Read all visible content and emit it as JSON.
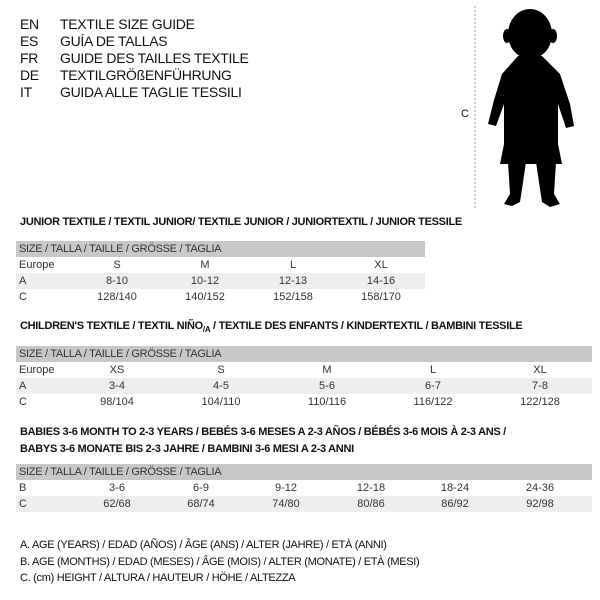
{
  "header": {
    "languages": [
      {
        "code": "EN",
        "title": "TEXTILE SIZE GUIDE"
      },
      {
        "code": "ES",
        "title": "GUÍA DE TALLAS"
      },
      {
        "code": "FR",
        "title": "GUIDE DES TAILLES TEXTILE"
      },
      {
        "code": "DE",
        "title": "TEXTILGRÖßENFÜHRUNG"
      },
      {
        "code": "IT",
        "title": "GUIDA ALLE TAGLIE TESSILI"
      }
    ]
  },
  "figure": {
    "measure_label": "C",
    "icon": "baby-silhouette"
  },
  "size_header": "SIZE / TALLA / TAILLE / GRÖSSE / TAGLIA",
  "junior": {
    "title": "JUNIOR TEXTILE / TEXTIL JUNIOR/ TEXTILE JUNIOR / JUNIORTEXTIL / JUNIOR TESSILE",
    "rows": [
      {
        "label": "Europe",
        "values": [
          "S",
          "M",
          "L",
          "XL"
        ]
      },
      {
        "label": "A",
        "values": [
          "8-10",
          "10-12",
          "12-13",
          "14-16"
        ]
      },
      {
        "label": "C",
        "values": [
          "128/140",
          "140/152",
          "152/158",
          "158/170"
        ]
      }
    ]
  },
  "children": {
    "title_pre": "CHILDREN'S TEXTILE / TEXTIL NIÑO",
    "title_sub": "/A",
    "title_post": " / TEXTILE DES ENFANTS / KINDERTEXTIL / BAMBINI TESSILE",
    "rows": [
      {
        "label": "Europe",
        "values": [
          "XS",
          "S",
          "M",
          "L",
          "XL"
        ]
      },
      {
        "label": "A",
        "values": [
          "3-4",
          "4-5",
          "5-6",
          "6-7",
          "7-8"
        ]
      },
      {
        "label": "C",
        "values": [
          "98/104",
          "104/110",
          "110/116",
          "116/122",
          "122/128"
        ]
      }
    ]
  },
  "babies": {
    "title_line1": "BABIES 3-6 MONTH TO 2-3 YEARS / BEBÉS 3-6 MESES A 2-3 AÑOS / BÉBÉS 3-6 MOIS À 2-3 ANS /",
    "title_line2": "BABYS 3-6 MONATE BIS 2-3 JAHRE / BAMBINI 3-6 MESI A 2-3 ANNI",
    "rows": [
      {
        "label": "B",
        "values": [
          "3-6",
          "6-9",
          "9-12",
          "12-18",
          "18-24",
          "24-36"
        ]
      },
      {
        "label": "C",
        "values": [
          "62/68",
          "68/74",
          "74/80",
          "80/86",
          "86/92",
          "92/98"
        ]
      }
    ]
  },
  "legend": [
    "A. AGE (YEARS) / EDAD (AÑOS) / ÂGE (ANS) / ALTER (JAHRE) / ETÀ (ANNI)",
    "B. AGE (MONTHS) / EDAD (MESES) / ÂGE (MOIS) / ALTER (MONATE) / ETÀ (MESI)",
    "C. (cm) HEIGHT / ALTURA / HAUTEUR / HÖHE / ALTEZZA"
  ]
}
